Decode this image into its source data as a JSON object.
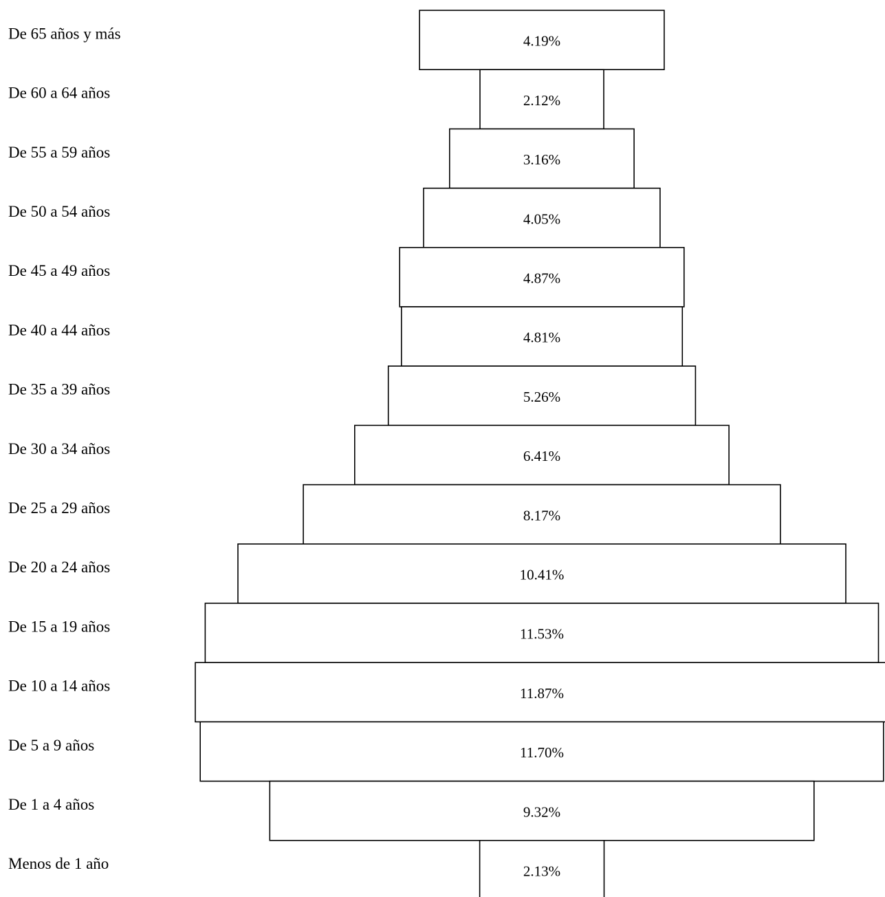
{
  "chart_data": {
    "type": "bar",
    "orientation": "horizontal",
    "style": "centered-pyramid",
    "categories": [
      "De 65 años y más",
      "De 60 a 64 años",
      "De 55 a 59 años",
      "De 50 a 54 años",
      "De 45 a 49 años",
      "De 40 a 44 años",
      "De 35 a 39 años",
      "De 30 a 34 años",
      "De 25 a 29 años",
      "De 20 a 24 años",
      "De 15 a 19 años",
      "De 10 a 14 años",
      "De 5 a 9 años",
      "De 1 a 4 años",
      "Menos de 1 año"
    ],
    "values": [
      4.19,
      2.12,
      3.16,
      4.05,
      4.87,
      4.81,
      5.26,
      6.41,
      8.17,
      10.41,
      11.53,
      11.87,
      11.7,
      9.32,
      2.13
    ],
    "value_labels": [
      "4.19%",
      "2.12%",
      "3.16%",
      "4.05%",
      "4.87%",
      "4.81%",
      "5.26%",
      "6.41%",
      "8.17%",
      "10.41%",
      "11.53%",
      "11.87%",
      "11.70%",
      "9.32%",
      "2.13%"
    ],
    "unit": "%",
    "grid": false,
    "legend": "none",
    "colors": {
      "bar_fill": "#ffffff",
      "bar_stroke": "#000000",
      "text": "#000000"
    }
  }
}
